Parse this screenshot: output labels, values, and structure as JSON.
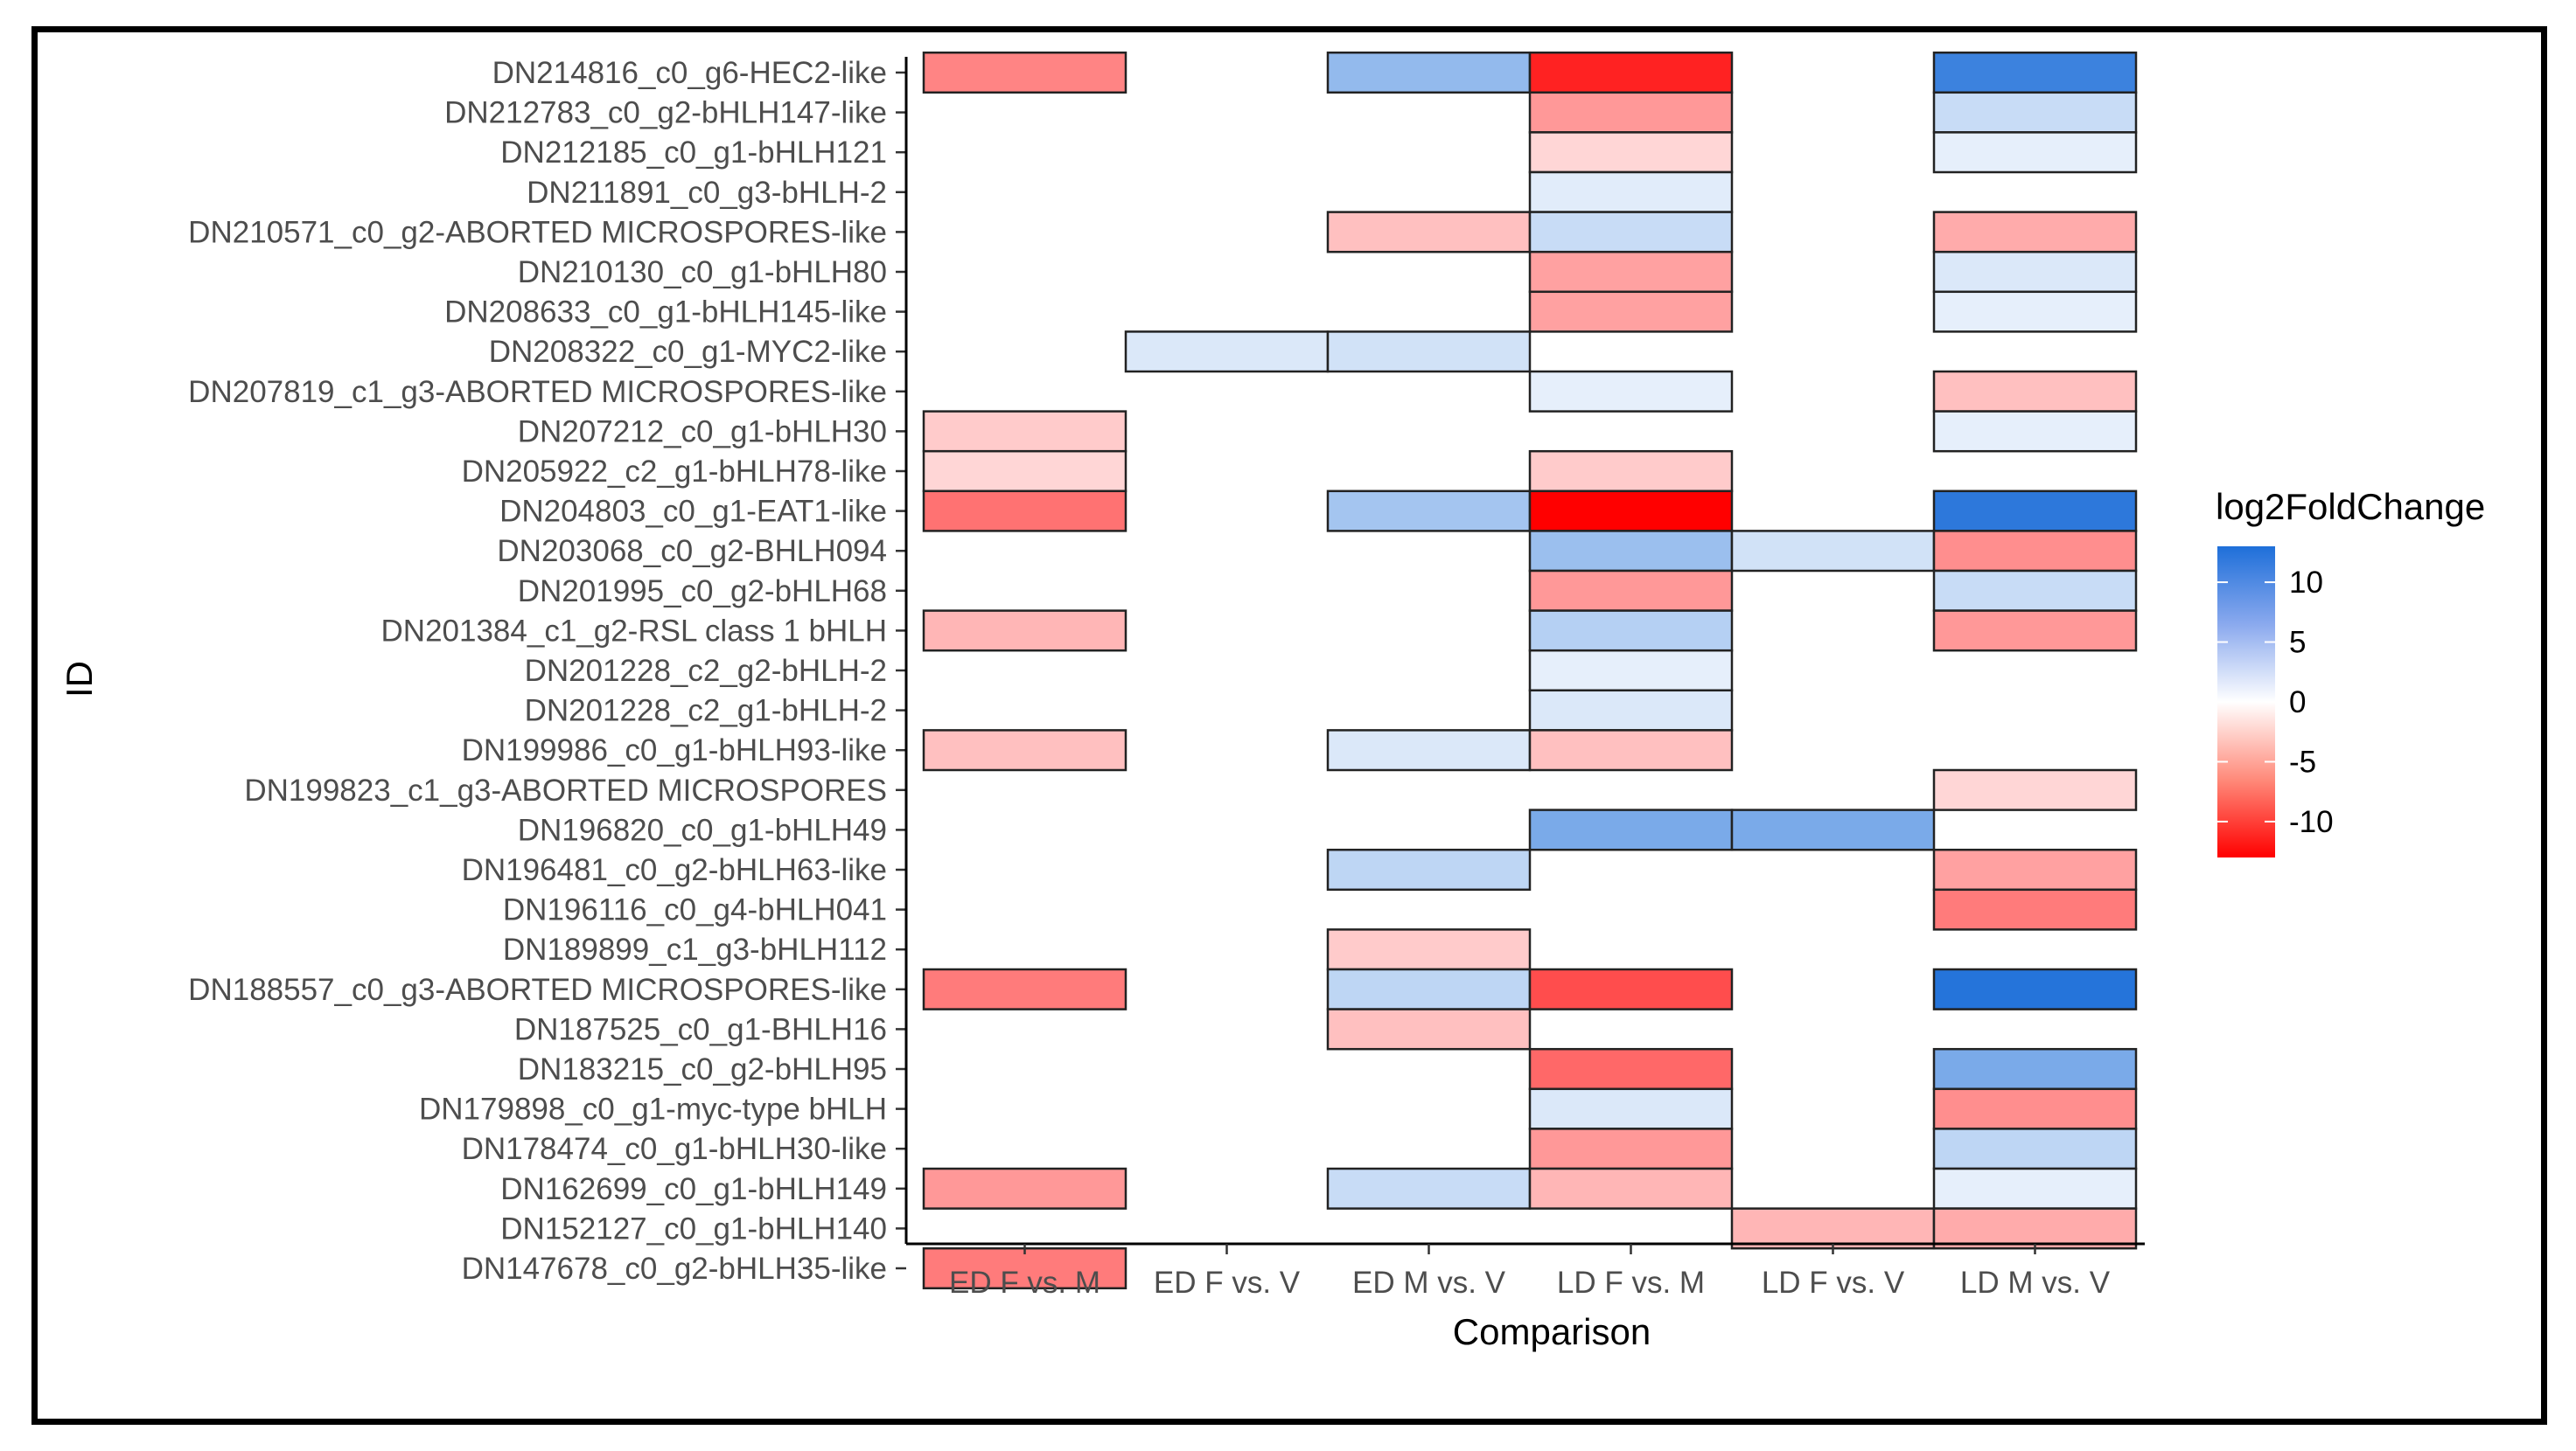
{
  "chart_data": {
    "type": "heatmap",
    "title": "",
    "xlabel": "Comparison",
    "ylabel": "ID",
    "legend_title": "log2FoldChange",
    "legend_ticks": [
      10,
      5,
      0,
      -5,
      -10
    ],
    "color_range": [
      -13,
      13
    ],
    "colors": {
      "low": "#ff0000",
      "mid": "#ffffff",
      "high": "#1e6fd9"
    },
    "columns": [
      "ED F vs. M",
      "ED F vs. V",
      "ED M vs. V",
      "LD F vs. M",
      "LD F vs. V",
      "LD M vs. V"
    ],
    "rows": [
      "DN214816_c0_g6-HEC2-like",
      "DN212783_c0_g2-bHLH147-like",
      "DN212185_c0_g1-bHLH121",
      "DN211891_c0_g3-bHLH-2",
      "DN210571_c0_g2-ABORTED MICROSPORES-like",
      "DN210130_c0_g1-bHLH80",
      "DN208633_c0_g1-bHLH145-like",
      "DN208322_c0_g1-MYC2-like",
      "DN207819_c1_g3-ABORTED MICROSPORES-like",
      "DN207212_c0_g1-bHLH30",
      "DN205922_c2_g1-bHLH78-like",
      "DN204803_c0_g1-EAT1-like",
      "DN203068_c0_g2-BHLH094",
      "DN201995_c0_g2-bHLH68",
      "DN201384_c1_g2-RSL class 1 bHLH",
      "DN201228_c2_g2-bHLH-2",
      "DN201228_c2_g1-bHLH-2",
      "DN199986_c0_g1-bHLH93-like",
      "DN199823_c1_g3-ABORTED MICROSPORES",
      "DN196820_c0_g1-bHLH49",
      "DN196481_c0_g2-bHLH63-like",
      "DN196116_c0_g4-bHLH041",
      "DN189899_c1_g3-bHLH112",
      "DN188557_c0_g3-ABORTED MICROSPORES-like",
      "DN187525_c0_g1-BHLH16",
      "DN183215_c0_g2-bHLH95",
      "DN179898_c0_g1-myc-type bHLH",
      "DN178474_c0_g1-bHLH30-like",
      "DN162699_c0_g1-bHLH149",
      "DN152127_c0_g1-bHLH140",
      "DN147678_c0_g2-bHLH35-like"
    ],
    "values": [
      [
        -5.5,
        null,
        5.5,
        -11,
        null,
        11
      ],
      [
        null,
        null,
        null,
        -4.5,
        null,
        2.5
      ],
      [
        null,
        null,
        null,
        -1.5,
        null,
        1
      ],
      [
        null,
        null,
        null,
        1.2,
        null,
        null
      ],
      [
        null,
        null,
        -2.5,
        2.5,
        null,
        -3.5
      ],
      [
        null,
        null,
        null,
        -4,
        null,
        1.5
      ],
      [
        null,
        null,
        null,
        -4,
        null,
        1
      ],
      [
        null,
        1.5,
        2,
        null,
        null,
        null
      ],
      [
        null,
        null,
        null,
        1,
        null,
        -2.5
      ],
      [
        -2,
        null,
        null,
        null,
        null,
        1
      ],
      [
        -1.5,
        null,
        null,
        -2,
        null,
        null
      ],
      [
        -6.5,
        null,
        4.5,
        -13,
        null,
        12
      ],
      [
        null,
        null,
        null,
        5,
        2,
        -5
      ],
      [
        null,
        null,
        null,
        -4.5,
        null,
        2.5
      ],
      [
        -3,
        null,
        null,
        3.5,
        null,
        -4.5
      ],
      [
        null,
        null,
        null,
        1,
        null,
        null
      ],
      [
        null,
        null,
        null,
        1.5,
        null,
        null
      ],
      [
        -2.5,
        null,
        1.5,
        -2.5,
        null,
        null
      ],
      [
        null,
        null,
        null,
        null,
        null,
        -1.5
      ],
      [
        null,
        null,
        null,
        7,
        7,
        null
      ],
      [
        null,
        null,
        3,
        null,
        null,
        -4
      ],
      [
        null,
        null,
        null,
        null,
        null,
        -6
      ],
      [
        null,
        null,
        -2,
        null,
        null,
        null
      ],
      [
        -6,
        null,
        3,
        -8.5,
        null,
        12.5
      ],
      [
        null,
        null,
        -2.5,
        null,
        null,
        null
      ],
      [
        null,
        null,
        null,
        -7,
        null,
        7
      ],
      [
        null,
        null,
        null,
        1.5,
        null,
        -5
      ],
      [
        null,
        null,
        null,
        -4.5,
        null,
        3
      ],
      [
        -4.5,
        null,
        2.5,
        -3,
        null,
        1
      ],
      [
        null,
        null,
        null,
        null,
        -3,
        -3.5
      ],
      [
        -6,
        null,
        null,
        null,
        null,
        null
      ]
    ]
  }
}
